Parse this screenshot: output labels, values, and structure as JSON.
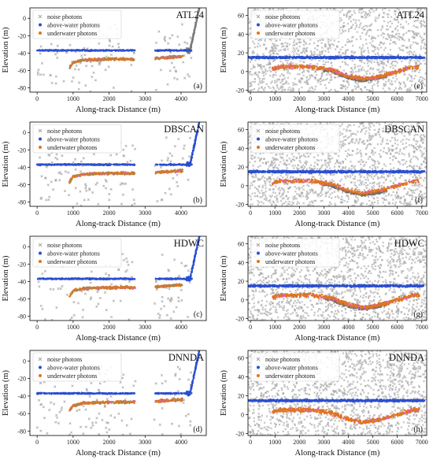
{
  "figure": {
    "legend_entries": [
      "noise photons",
      "above-water photons",
      "underwater photons"
    ],
    "colors": {
      "noise": "#8c8c8c",
      "above": "#2b4fd0",
      "underwater": "#e0751e",
      "underwater_alt": "#e060c0",
      "frame": "#000000"
    }
  },
  "chart_data": [
    {
      "type": "scatter",
      "panel": "a",
      "method": "ATL24",
      "side": "left",
      "xlabel": "Along-track Distance (m)",
      "ylabel": "Elevation (m)",
      "xlim": [
        -200,
        4700
      ],
      "ylim": [
        -85,
        12
      ],
      "xticks": [
        0,
        1000,
        2000,
        3000,
        4000
      ],
      "yticks": [
        -80,
        -60,
        -40,
        -20,
        0
      ],
      "legend_placement": "top-left",
      "series": [
        {
          "name": "noise photons",
          "values": "scattered -85 to 12 m between 0 and 4300 m"
        },
        {
          "name": "above-water photons",
          "x": [
            0,
            2700,
            3300,
            4300
          ],
          "y": [
            -37,
            -37,
            -37,
            -37
          ]
        },
        {
          "name": "underwater photons",
          "x": [
            900,
            1000,
            1300,
            2000,
            2700,
            3300,
            4000
          ],
          "y": [
            -57,
            -51,
            -48,
            -47,
            -47,
            -46,
            -44
          ]
        }
      ]
    },
    {
      "type": "scatter",
      "panel": "b",
      "method": "DBSCAN",
      "side": "left",
      "xlabel": "Along-track Distance (m)",
      "ylabel": "Elevation (m)",
      "xlim": [
        -200,
        4700
      ],
      "ylim": [
        -85,
        12
      ],
      "xticks": [
        0,
        1000,
        2000,
        3000,
        4000
      ],
      "yticks": [
        -80,
        -60,
        -40,
        -20,
        0
      ],
      "legend_placement": "top-left",
      "series": [
        {
          "name": "noise photons",
          "values": "scattered -85 to 12 m between 0 and 4300 m"
        },
        {
          "name": "above-water photons",
          "x": [
            0,
            2700,
            3300,
            4300
          ],
          "y": [
            -37,
            -37,
            -37,
            -37
          ]
        },
        {
          "name": "underwater photons",
          "x": [
            900,
            1000,
            1300,
            2000,
            2700,
            3300,
            4000
          ],
          "y": [
            -57,
            -51,
            -48,
            -47,
            -47,
            -46,
            -44
          ]
        }
      ]
    },
    {
      "type": "scatter",
      "panel": "c",
      "method": "HDWC",
      "side": "left",
      "xlabel": "Along-track Distance (m)",
      "ylabel": "Elevation (m)",
      "xlim": [
        -200,
        4700
      ],
      "ylim": [
        -85,
        12
      ],
      "xticks": [
        0,
        1000,
        2000,
        3000,
        4000
      ],
      "yticks": [
        -80,
        -60,
        -40,
        -20,
        0
      ],
      "legend_placement": "top-left",
      "series": [
        {
          "name": "noise photons",
          "values": "scattered -85 to 12 m between 0 and 4300 m"
        },
        {
          "name": "above-water photons",
          "x": [
            0,
            2700,
            3300,
            4300
          ],
          "y": [
            -37,
            -37,
            -37,
            -37
          ]
        },
        {
          "name": "underwater photons",
          "x": [
            900,
            1000,
            1300,
            2000,
            2700,
            3300,
            4000
          ],
          "y": [
            -57,
            -51,
            -48,
            -47,
            -47,
            -46,
            -44
          ]
        }
      ]
    },
    {
      "type": "scatter",
      "panel": "d",
      "method": "DNNDA",
      "side": "left",
      "xlabel": "Along-track Distance (m)",
      "ylabel": "Elevation (m)",
      "xlim": [
        -200,
        4700
      ],
      "ylim": [
        -85,
        12
      ],
      "xticks": [
        0,
        1000,
        2000,
        3000,
        4000
      ],
      "yticks": [
        -80,
        -60,
        -40,
        -20,
        0
      ],
      "legend_placement": "top-left",
      "series": [
        {
          "name": "noise photons",
          "values": "scattered -85 to 12 m between 0 and 4300 m"
        },
        {
          "name": "above-water photons",
          "x": [
            0,
            2700,
            3300,
            4300
          ],
          "y": [
            -37,
            -37,
            -37,
            -37
          ]
        },
        {
          "name": "underwater photons",
          "x": [
            900,
            1000,
            1300,
            2000,
            2700,
            3300,
            4000
          ],
          "y": [
            -57,
            -51,
            -48,
            -47,
            -47,
            -46,
            -44
          ]
        }
      ]
    },
    {
      "type": "scatter",
      "panel": "e",
      "method": "ATL24",
      "side": "right",
      "xlabel": "Along-track Distance (m)",
      "ylabel": "Elevation (m)",
      "xlim": [
        -100,
        7200
      ],
      "ylim": [
        -22,
        68
      ],
      "xticks": [
        0,
        1000,
        2000,
        3000,
        4000,
        5000,
        6000,
        7000
      ],
      "yticks": [
        -20,
        0,
        20,
        40,
        60
      ],
      "legend_placement": "top-left",
      "series": [
        {
          "name": "noise photons",
          "values": "dense scatter -20 to 68 m across full track"
        },
        {
          "name": "above-water photons",
          "x": [
            0,
            7000
          ],
          "y": [
            15,
            15
          ]
        },
        {
          "name": "underwater photons",
          "x": [
            900,
            1300,
            2500,
            3300,
            4000,
            4600,
            5300,
            6000,
            6700
          ],
          "y": [
            3,
            5,
            5,
            2,
            -5,
            -8,
            -5,
            0,
            5
          ]
        }
      ]
    },
    {
      "type": "scatter",
      "panel": "f",
      "method": "DBSCAN",
      "side": "right",
      "xlabel": "Along-track Distance (m)",
      "ylabel": "Elevation (m)",
      "xlim": [
        -100,
        7200
      ],
      "ylim": [
        -22,
        68
      ],
      "xticks": [
        0,
        1000,
        2000,
        3000,
        4000,
        5000,
        6000,
        7000
      ],
      "yticks": [
        -20,
        0,
        20,
        40,
        60
      ],
      "legend_placement": "top-left",
      "series": [
        {
          "name": "noise photons",
          "values": "dense scatter -20 to 68 m across full track"
        },
        {
          "name": "above-water photons",
          "x": [
            0,
            7000
          ],
          "y": [
            15,
            15
          ]
        },
        {
          "name": "underwater photons",
          "x": [
            900,
            1300,
            2500,
            3300,
            4000,
            4600,
            5300,
            6000,
            6700
          ],
          "y": [
            3,
            5,
            5,
            2,
            -5,
            -8,
            -5,
            0,
            5
          ]
        }
      ]
    },
    {
      "type": "scatter",
      "panel": "g",
      "method": "HDWC",
      "side": "right",
      "xlabel": "Along-track Distance (m)",
      "ylabel": "Elevation (m)",
      "xlim": [
        -100,
        7200
      ],
      "ylim": [
        -22,
        68
      ],
      "xticks": [
        0,
        1000,
        2000,
        3000,
        4000,
        5000,
        6000,
        7000
      ],
      "yticks": [
        -20,
        0,
        20,
        40,
        60
      ],
      "legend_placement": "top-left",
      "series": [
        {
          "name": "noise photons",
          "values": "dense scatter -20 to 68 m across full track"
        },
        {
          "name": "above-water photons",
          "x": [
            0,
            7000
          ],
          "y": [
            15,
            15
          ]
        },
        {
          "name": "underwater photons",
          "x": [
            900,
            1300,
            2500,
            3300,
            4000,
            4600,
            5300,
            6000,
            6700
          ],
          "y": [
            3,
            5,
            5,
            2,
            -5,
            -8,
            -5,
            0,
            5
          ]
        }
      ]
    },
    {
      "type": "scatter",
      "panel": "h",
      "method": "DNNDA",
      "side": "right",
      "xlabel": "Along-track Distance (m)",
      "ylabel": "Elevation (m)",
      "xlim": [
        -100,
        7200
      ],
      "ylim": [
        -22,
        68
      ],
      "xticks": [
        0,
        1000,
        2000,
        3000,
        4000,
        5000,
        6000,
        7000
      ],
      "yticks": [
        -20,
        0,
        20,
        40,
        60
      ],
      "legend_placement": "top-left",
      "series": [
        {
          "name": "noise photons",
          "values": "dense scatter -20 to 68 m across full track"
        },
        {
          "name": "above-water photons",
          "x": [
            0,
            7000
          ],
          "y": [
            15,
            15
          ]
        },
        {
          "name": "underwater photons",
          "x": [
            900,
            1300,
            2500,
            3300,
            4000,
            4600,
            5300,
            6000,
            6700
          ],
          "y": [
            3,
            5,
            5,
            2,
            -5,
            -8,
            -5,
            0,
            5
          ]
        }
      ]
    }
  ]
}
